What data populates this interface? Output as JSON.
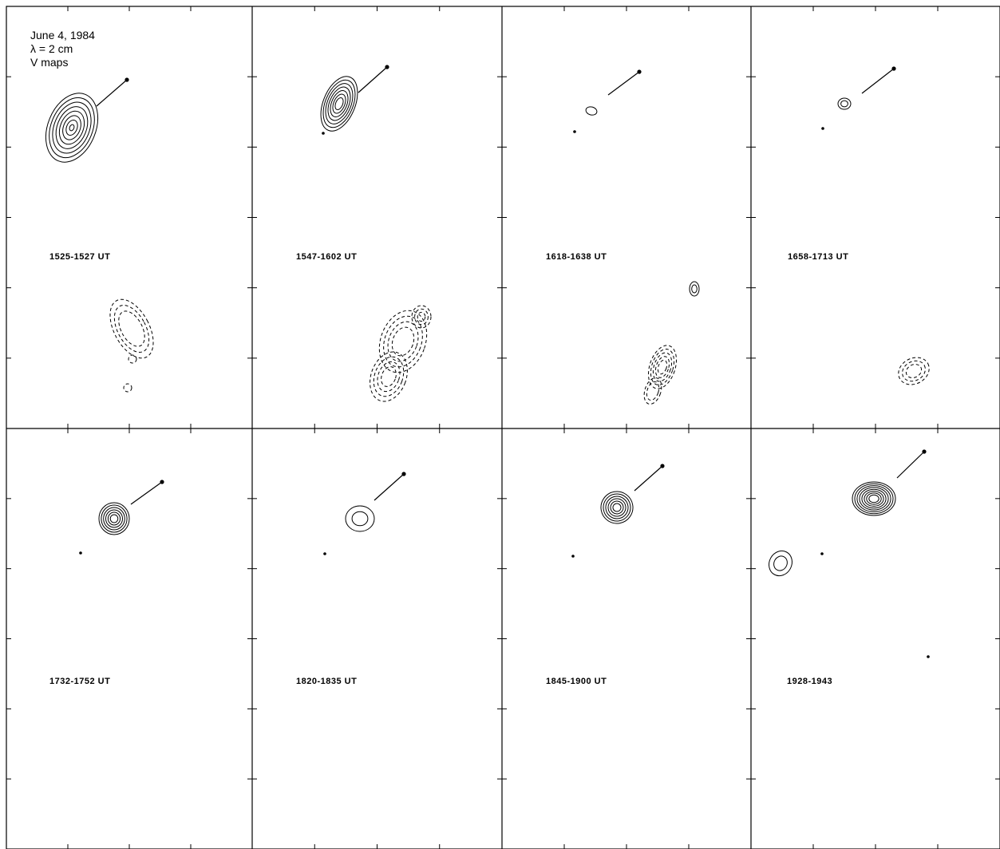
{
  "figure": {
    "header": {
      "date": "June 4, 1984",
      "wavelength": "λ = 2 cm",
      "map_type": "V maps"
    },
    "panels": [
      {
        "time": "1525-1527 UT"
      },
      {
        "time": "1547-1602 UT"
      },
      {
        "time": "1618-1638 UT"
      },
      {
        "time": "1658-1713 UT"
      },
      {
        "time": "1732-1752 UT"
      },
      {
        "time": "1820-1835 UT"
      },
      {
        "time": "1845-1900 UT"
      },
      {
        "time": "1928-1943"
      }
    ]
  }
}
